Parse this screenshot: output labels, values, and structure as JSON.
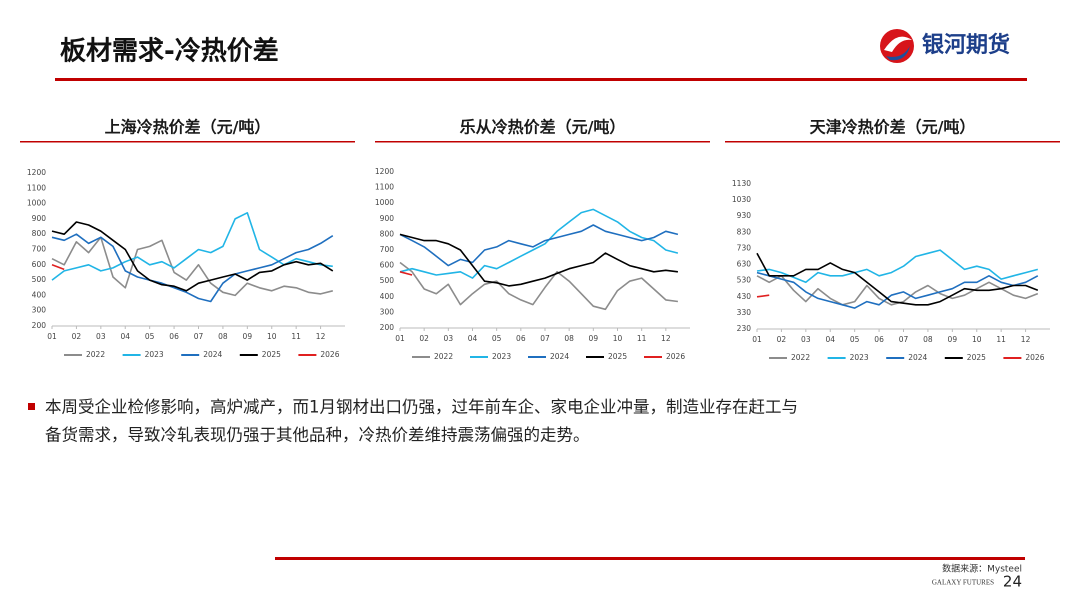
{
  "header": {
    "title": "板材需求-冷热价差",
    "logo": "银河期货"
  },
  "chart_data": [
    {
      "type": "line",
      "title": "上海冷热价差（元/吨）",
      "x": [
        1,
        1.5,
        2,
        2.5,
        3,
        3.5,
        4,
        4.5,
        5,
        5.5,
        6,
        6.5,
        7,
        7.5,
        8,
        8.5,
        9,
        9.5,
        10,
        10.5,
        11,
        11.5,
        12,
        12.5
      ],
      "xlim": [
        1,
        13
      ],
      "xticks": [
        {
          "value": 1,
          "label": "01"
        },
        {
          "value": 2,
          "label": "02"
        },
        {
          "value": 3,
          "label": "03"
        },
        {
          "value": 4,
          "label": "04"
        },
        {
          "value": 5,
          "label": "05"
        },
        {
          "value": 6,
          "label": "06"
        },
        {
          "value": 7,
          "label": "07"
        },
        {
          "value": 8,
          "label": "08"
        },
        {
          "value": 9,
          "label": "09"
        },
        {
          "value": 10,
          "label": "10"
        },
        {
          "value": 11,
          "label": "11"
        },
        {
          "value": 12,
          "label": "12"
        }
      ],
      "ylim": [
        200,
        1200
      ],
      "yticks": [
        200,
        300,
        400,
        500,
        600,
        700,
        800,
        900,
        1000,
        1100,
        1200
      ],
      "series": [
        {
          "name": "2022",
          "color": "#8c8c8c",
          "values": [
            640,
            600,
            750,
            680,
            780,
            520,
            450,
            700,
            720,
            760,
            550,
            500,
            600,
            480,
            420,
            400,
            480,
            450,
            430,
            460,
            450,
            420,
            410,
            430
          ]
        },
        {
          "name": "2023",
          "color": "#21b5e6",
          "values": [
            500,
            560,
            580,
            600,
            560,
            580,
            620,
            650,
            600,
            620,
            580,
            640,
            700,
            680,
            720,
            900,
            940,
            700,
            650,
            600,
            640,
            620,
            600,
            590
          ]
        },
        {
          "name": "2024",
          "color": "#1f6fbf",
          "values": [
            780,
            760,
            800,
            740,
            780,
            720,
            560,
            520,
            500,
            480,
            450,
            420,
            380,
            360,
            480,
            540,
            560,
            580,
            600,
            640,
            680,
            700,
            740,
            790
          ]
        },
        {
          "name": "2025",
          "color": "#000000",
          "values": [
            820,
            800,
            880,
            860,
            820,
            760,
            700,
            560,
            500,
            470,
            460,
            430,
            480,
            500,
            520,
            540,
            500,
            550,
            560,
            600,
            620,
            600,
            610,
            560
          ]
        },
        {
          "name": "2026",
          "color": "#e02020",
          "values": [
            600,
            570,
            null,
            null,
            null,
            null,
            null,
            null,
            null,
            null,
            null,
            null,
            null,
            null,
            null,
            null,
            null,
            null,
            null,
            null,
            null,
            null,
            null,
            null
          ]
        }
      ]
    },
    {
      "type": "line",
      "title": "乐从冷热价差（元/吨）",
      "x": [
        1,
        1.5,
        2,
        2.5,
        3,
        3.5,
        4,
        4.5,
        5,
        5.5,
        6,
        6.5,
        7,
        7.5,
        8,
        8.5,
        9,
        9.5,
        10,
        10.5,
        11,
        11.5,
        12,
        12.5
      ],
      "xlim": [
        1,
        13
      ],
      "xticks": [
        {
          "value": 1,
          "label": "01"
        },
        {
          "value": 2,
          "label": "02"
        },
        {
          "value": 3,
          "label": "03"
        },
        {
          "value": 4,
          "label": "04"
        },
        {
          "value": 5,
          "label": "05"
        },
        {
          "value": 6,
          "label": "06"
        },
        {
          "value": 7,
          "label": "07"
        },
        {
          "value": 8,
          "label": "08"
        },
        {
          "value": 9,
          "label": "09"
        },
        {
          "value": 10,
          "label": "10"
        },
        {
          "value": 11,
          "label": "11"
        },
        {
          "value": 12,
          "label": "12"
        }
      ],
      "ylim": [
        200,
        1200
      ],
      "yticks": [
        200,
        300,
        400,
        500,
        600,
        700,
        800,
        900,
        1000,
        1100,
        1200
      ],
      "series": [
        {
          "name": "2022",
          "color": "#8c8c8c",
          "values": [
            620,
            560,
            450,
            420,
            480,
            350,
            420,
            480,
            500,
            420,
            380,
            350,
            460,
            560,
            500,
            420,
            340,
            320,
            440,
            500,
            520,
            450,
            380,
            370
          ]
        },
        {
          "name": "2023",
          "color": "#21b5e6",
          "values": [
            560,
            580,
            560,
            540,
            550,
            560,
            520,
            600,
            580,
            620,
            660,
            700,
            740,
            820,
            880,
            940,
            960,
            920,
            880,
            820,
            780,
            760,
            700,
            680
          ]
        },
        {
          "name": "2024",
          "color": "#1f6fbf",
          "values": [
            800,
            760,
            720,
            660,
            600,
            640,
            620,
            700,
            720,
            760,
            740,
            720,
            760,
            780,
            800,
            820,
            860,
            820,
            800,
            780,
            760,
            780,
            820,
            800
          ]
        },
        {
          "name": "2025",
          "color": "#000000",
          "values": [
            800,
            780,
            760,
            760,
            740,
            700,
            600,
            500,
            490,
            470,
            480,
            500,
            520,
            550,
            580,
            600,
            620,
            680,
            640,
            600,
            580,
            560,
            570,
            560
          ]
        },
        {
          "name": "2026",
          "color": "#e02020",
          "values": [
            560,
            540,
            null,
            null,
            null,
            null,
            null,
            null,
            null,
            null,
            null,
            null,
            null,
            null,
            null,
            null,
            null,
            null,
            null,
            null,
            null,
            null,
            null,
            null
          ]
        }
      ]
    },
    {
      "type": "line",
      "title": "天津冷热价差（元/吨）",
      "x": [
        1,
        1.5,
        2,
        2.5,
        3,
        3.5,
        4,
        4.5,
        5,
        5.5,
        6,
        6.5,
        7,
        7.5,
        8,
        8.5,
        9,
        9.5,
        10,
        10.5,
        11,
        11.5,
        12,
        12.5
      ],
      "xlim": [
        1,
        13
      ],
      "xticks": [
        {
          "value": 1,
          "label": "01"
        },
        {
          "value": 2,
          "label": "02"
        },
        {
          "value": 3,
          "label": "03"
        },
        {
          "value": 4,
          "label": "04"
        },
        {
          "value": 5,
          "label": "05"
        },
        {
          "value": 6,
          "label": "06"
        },
        {
          "value": 7,
          "label": "07"
        },
        {
          "value": 8,
          "label": "08"
        },
        {
          "value": 9,
          "label": "09"
        },
        {
          "value": 10,
          "label": "10"
        },
        {
          "value": 11,
          "label": "11"
        },
        {
          "value": 12,
          "label": "12"
        }
      ],
      "ylim": [
        230,
        1130
      ],
      "yticks": [
        230,
        330,
        430,
        530,
        630,
        730,
        830,
        930,
        1030,
        1130
      ],
      "series": [
        {
          "name": "2022",
          "color": "#8c8c8c",
          "values": [
            560,
            520,
            560,
            470,
            400,
            480,
            420,
            380,
            400,
            500,
            420,
            380,
            400,
            460,
            500,
            450,
            420,
            440,
            480,
            520,
            480,
            440,
            420,
            450
          ]
        },
        {
          "name": "2023",
          "color": "#21b5e6",
          "values": [
            590,
            600,
            580,
            550,
            520,
            580,
            560,
            560,
            580,
            600,
            560,
            580,
            620,
            680,
            700,
            720,
            660,
            600,
            620,
            600,
            540,
            560,
            580,
            600
          ]
        },
        {
          "name": "2024",
          "color": "#1f6fbf",
          "values": [
            580,
            560,
            540,
            520,
            460,
            420,
            400,
            380,
            360,
            400,
            380,
            440,
            460,
            420,
            440,
            460,
            480,
            520,
            520,
            560,
            520,
            500,
            520,
            560
          ]
        },
        {
          "name": "2025",
          "color": "#000000",
          "values": [
            700,
            560,
            560,
            560,
            600,
            600,
            640,
            600,
            580,
            520,
            460,
            400,
            390,
            380,
            380,
            400,
            440,
            480,
            470,
            470,
            480,
            500,
            500,
            470
          ]
        },
        {
          "name": "2026",
          "color": "#e02020",
          "values": [
            430,
            440,
            null,
            null,
            null,
            null,
            null,
            null,
            null,
            null,
            null,
            null,
            null,
            null,
            null,
            null,
            null,
            null,
            null,
            null,
            null,
            null,
            null,
            null
          ]
        }
      ]
    }
  ],
  "bullet": [
    "本周受企业检修影响，高炉减产，而1月钢材出口仍强，过年前车企、家电企业冲量，制造业存在赶工与",
    "备货需求，导致冷轧表现仍强于其他品种，冷热价差维持震荡偏强的走势。"
  ],
  "footer": {
    "source": "数据来源：Mysteel",
    "brand": "GALAXY FUTURES",
    "page": "24"
  }
}
